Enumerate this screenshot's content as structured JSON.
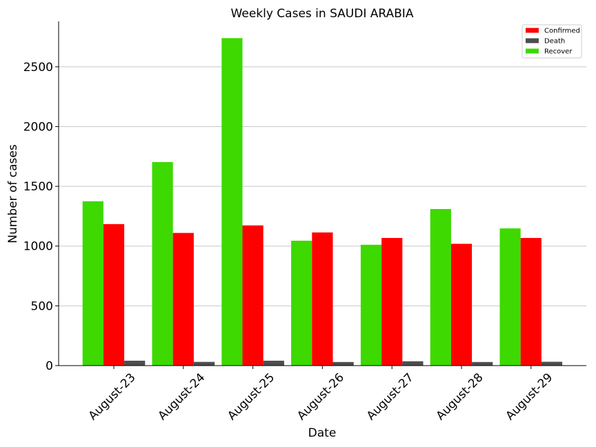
{
  "chart_data": {
    "type": "bar",
    "title": "Weekly Cases in SAUDI ARABIA",
    "xlabel": "Date",
    "ylabel": "Number of cases",
    "categories": [
      "August-23",
      "August-24",
      "August-25",
      "August-26",
      "August-27",
      "August-28",
      "August-29"
    ],
    "series": [
      {
        "name": "Recover",
        "color": "#3dd900",
        "values": [
          1375,
          1703,
          2740,
          1045,
          1011,
          1310,
          1148
        ]
      },
      {
        "name": "Confirmed",
        "color": "#ff0000",
        "values": [
          1184,
          1110,
          1173,
          1114,
          1068,
          1019,
          1068
        ]
      },
      {
        "name": "Death",
        "color": "#4d4d4d",
        "values": [
          41,
          31,
          41,
          30,
          36,
          30,
          32
        ]
      }
    ],
    "legend_order": [
      "Confirmed",
      "Death",
      "Recover"
    ],
    "yticks": [
      0,
      500,
      1000,
      1500,
      2000,
      2500
    ],
    "ylim": [
      0,
      2880
    ],
    "grid": "horizontal",
    "legend_position": "top-right"
  }
}
